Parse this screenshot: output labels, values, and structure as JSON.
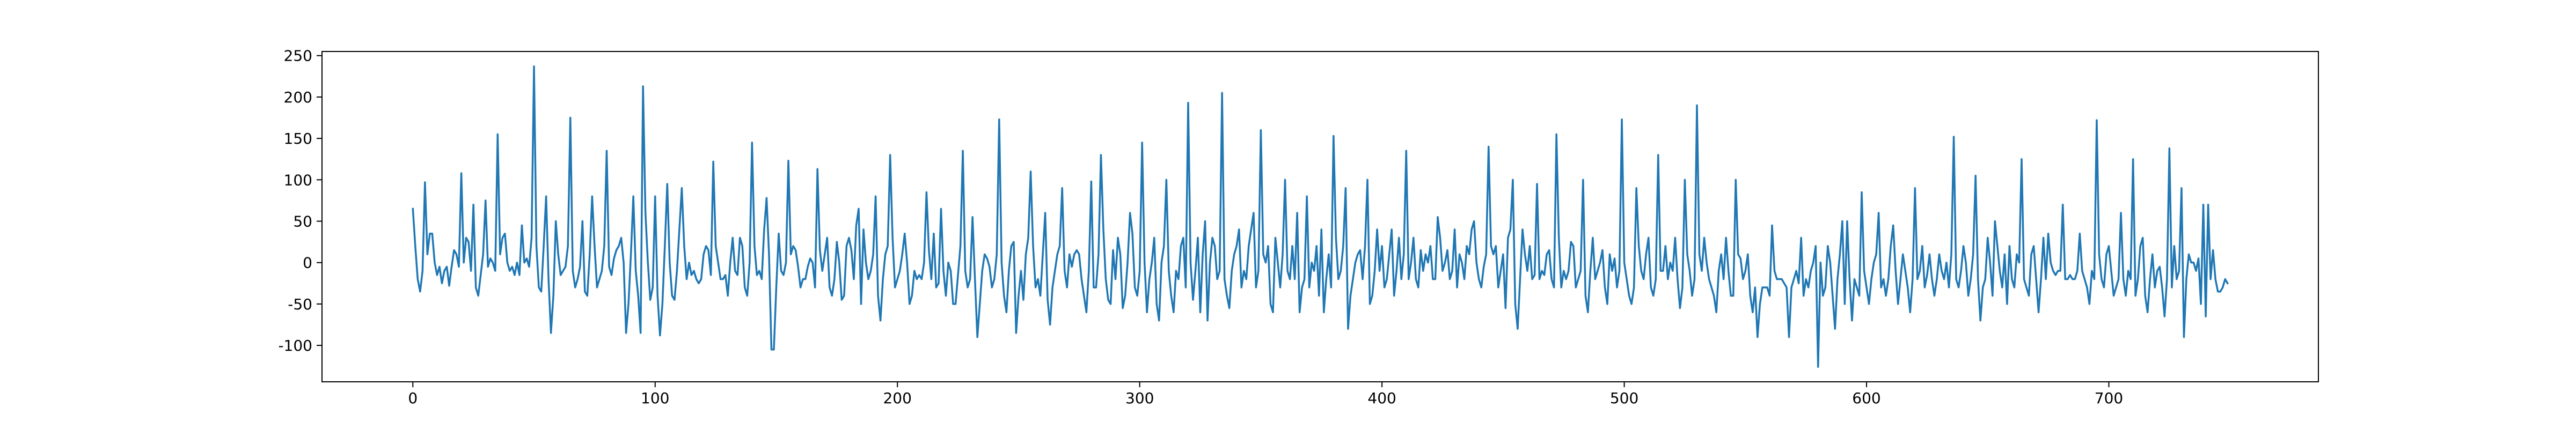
{
  "chart_data": {
    "type": "line",
    "series": [
      {
        "color": "#1f77b4",
        "values": [
          65,
          20,
          -20,
          -35,
          -10,
          97,
          10,
          35,
          35,
          0,
          -15,
          -5,
          -25,
          -10,
          -5,
          -28,
          -5,
          15,
          10,
          -5,
          108,
          0,
          30,
          25,
          -10,
          70,
          -30,
          -40,
          -15,
          10,
          75,
          -5,
          5,
          0,
          -10,
          155,
          10,
          30,
          35,
          0,
          -10,
          -5,
          -15,
          0,
          -15,
          45,
          0,
          5,
          -5,
          30,
          237,
          20,
          -30,
          -35,
          20,
          80,
          -20,
          -85,
          -40,
          50,
          10,
          -15,
          -10,
          -5,
          20,
          175,
          -10,
          -30,
          -20,
          -5,
          50,
          -35,
          -40,
          10,
          80,
          20,
          -30,
          -20,
          -10,
          20,
          135,
          -5,
          -15,
          5,
          15,
          20,
          30,
          0,
          -85,
          -50,
          10,
          80,
          -10,
          -40,
          -85,
          213,
          60,
          0,
          -45,
          -30,
          80,
          -40,
          -88,
          -50,
          20,
          95,
          0,
          -40,
          -45,
          -10,
          40,
          90,
          20,
          -20,
          0,
          -15,
          -10,
          -20,
          -25,
          -20,
          10,
          20,
          15,
          -15,
          122,
          20,
          0,
          -20,
          -20,
          -15,
          -40,
          0,
          30,
          -10,
          -15,
          30,
          20,
          -30,
          -40,
          0,
          145,
          20,
          -15,
          -10,
          -20,
          40,
          78,
          10,
          -105,
          -105,
          -30,
          35,
          -10,
          -15,
          0,
          123,
          10,
          20,
          15,
          -5,
          -30,
          -20,
          -20,
          -5,
          5,
          0,
          -30,
          113,
          15,
          -10,
          10,
          30,
          -30,
          -40,
          -20,
          25,
          0,
          -45,
          -40,
          20,
          30,
          15,
          -20,
          45,
          65,
          -50,
          40,
          0,
          -20,
          -10,
          10,
          80,
          -40,
          -70,
          -20,
          10,
          20,
          130,
          30,
          -30,
          -20,
          -10,
          10,
          35,
          0,
          -50,
          -40,
          -10,
          -20,
          -15,
          -20,
          0,
          85,
          15,
          -20,
          35,
          -30,
          -25,
          65,
          -10,
          -40,
          0,
          -10,
          -50,
          -50,
          -15,
          20,
          135,
          -10,
          -30,
          -20,
          55,
          -20,
          -90,
          -50,
          -10,
          10,
          5,
          -5,
          -30,
          -20,
          10,
          173,
          0,
          -40,
          -60,
          -10,
          20,
          25,
          -85,
          -40,
          -10,
          -45,
          10,
          30,
          110,
          20,
          -30,
          -20,
          -40,
          10,
          60,
          -45,
          -75,
          -30,
          -10,
          10,
          20,
          90,
          -10,
          -30,
          10,
          -5,
          10,
          15,
          10,
          -20,
          -40,
          -60,
          -10,
          98,
          -30,
          -30,
          10,
          130,
          40,
          -20,
          -45,
          -50,
          15,
          -20,
          30,
          10,
          -55,
          -40,
          0,
          60,
          35,
          -30,
          -40,
          -10,
          145,
          0,
          -60,
          -20,
          0,
          30,
          -50,
          -70,
          0,
          20,
          100,
          -10,
          -40,
          -60,
          -10,
          -20,
          20,
          30,
          -30,
          193,
          0,
          -45,
          -10,
          30,
          -60,
          10,
          50,
          -70,
          0,
          30,
          20,
          -20,
          -10,
          205,
          -20,
          -40,
          -55,
          -10,
          10,
          20,
          40,
          -30,
          -10,
          -20,
          20,
          40,
          60,
          -30,
          -10,
          160,
          10,
          0,
          20,
          -50,
          -60,
          30,
          0,
          -30,
          10,
          100,
          -10,
          -20,
          20,
          -20,
          60,
          -60,
          -30,
          -20,
          80,
          -30,
          0,
          -10,
          20,
          -40,
          40,
          -60,
          -20,
          10,
          -30,
          153,
          30,
          -20,
          -10,
          20,
          90,
          -80,
          -40,
          -20,
          0,
          10,
          15,
          -20,
          20,
          100,
          -50,
          -40,
          -10,
          40,
          -10,
          20,
          -30,
          -20,
          10,
          40,
          -40,
          -10,
          30,
          -20,
          10,
          135,
          -20,
          0,
          30,
          -20,
          -30,
          15,
          -10,
          10,
          0,
          20,
          -20,
          -20,
          55,
          30,
          -10,
          0,
          15,
          -20,
          -10,
          40,
          -30,
          10,
          0,
          -20,
          20,
          10,
          40,
          50,
          0,
          -20,
          -30,
          -5,
          10,
          140,
          20,
          10,
          20,
          -30,
          -10,
          10,
          -55,
          30,
          40,
          100,
          -50,
          -80,
          -20,
          40,
          10,
          -10,
          20,
          -20,
          -15,
          95,
          -20,
          -10,
          -15,
          10,
          15,
          -20,
          -30,
          155,
          30,
          -30,
          -10,
          -20,
          -10,
          25,
          20,
          -30,
          -20,
          -10,
          100,
          -40,
          -60,
          -10,
          30,
          -20,
          -10,
          0,
          15,
          -30,
          -50,
          10,
          -10,
          5,
          -30,
          -10,
          173,
          0,
          -20,
          -40,
          -50,
          -30,
          90,
          20,
          -10,
          -20,
          10,
          30,
          -30,
          -40,
          -20,
          130,
          -10,
          -10,
          20,
          -20,
          0,
          -10,
          30,
          -20,
          -55,
          -30,
          100,
          10,
          -10,
          -40,
          -20,
          190,
          10,
          -10,
          30,
          0,
          -20,
          -30,
          -40,
          -60,
          -10,
          10,
          -20,
          30,
          -10,
          -40,
          -40,
          100,
          10,
          5,
          -20,
          -10,
          10,
          -40,
          -60,
          -30,
          -90,
          -50,
          -30,
          -30,
          -30,
          -40,
          45,
          -10,
          -20,
          -20,
          -20,
          -25,
          -30,
          -90,
          -30,
          -20,
          -10,
          -25,
          30,
          -40,
          -20,
          -30,
          -10,
          0,
          20,
          -126,
          0,
          -40,
          -30,
          20,
          0,
          -40,
          -80,
          -20,
          10,
          50,
          -50,
          50,
          -20,
          -70,
          -20,
          -30,
          -40,
          85,
          -10,
          -30,
          -50,
          -20,
          0,
          10,
          60,
          -30,
          -20,
          -40,
          -20,
          20,
          45,
          -10,
          -50,
          -20,
          10,
          -10,
          -30,
          -60,
          -20,
          90,
          -20,
          -10,
          20,
          -30,
          -15,
          10,
          -20,
          -40,
          -20,
          10,
          -10,
          -20,
          0,
          -30,
          10,
          152,
          -20,
          -30,
          -10,
          20,
          0,
          -40,
          -20,
          10,
          105,
          -20,
          -70,
          -30,
          -20,
          30,
          0,
          -40,
          50,
          20,
          -10,
          -30,
          10,
          -50,
          20,
          -20,
          -30,
          10,
          0,
          125,
          -20,
          -30,
          -40,
          10,
          20,
          -20,
          -60,
          -20,
          30,
          -20,
          35,
          0,
          -10,
          -15,
          -10,
          -10,
          70,
          -20,
          -20,
          -15,
          -20,
          -20,
          -10,
          35,
          -10,
          -20,
          -30,
          -50,
          -10,
          -20,
          172,
          10,
          -20,
          -30,
          10,
          20,
          -10,
          -40,
          -30,
          -20,
          60,
          -20,
          -40,
          -10,
          -20,
          125,
          -40,
          -20,
          20,
          30,
          -40,
          -60,
          -20,
          10,
          -30,
          -10,
          -5,
          -30,
          -65,
          -20,
          138,
          -30,
          20,
          -20,
          -10,
          90,
          -90,
          -20,
          10,
          0,
          0,
          -10,
          5,
          -50,
          70,
          -65,
          70,
          -20,
          15,
          -20,
          -35,
          -35,
          -30,
          -20,
          -25
        ]
      }
    ],
    "xlim": [
      -37.5,
      786.5
    ],
    "xticks": [
      0,
      100,
      200,
      300,
      400,
      500,
      600,
      700
    ],
    "ylim": [
      -144,
      255
    ],
    "yticks": [
      -100,
      -50,
      0,
      50,
      100,
      150,
      200,
      250
    ]
  }
}
